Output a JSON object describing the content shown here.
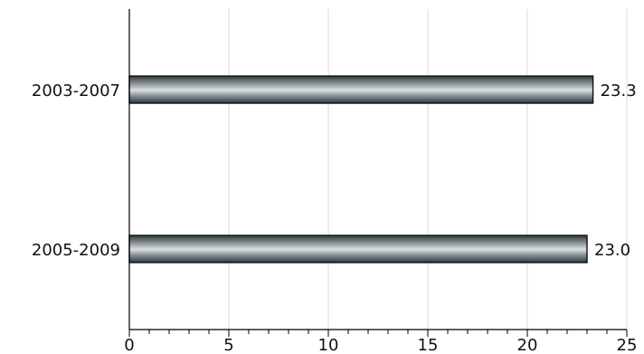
{
  "chart_data": {
    "type": "bar",
    "orientation": "horizontal",
    "categories": [
      "2003-2007",
      "2005-2009"
    ],
    "values": [
      23.3,
      23.0
    ],
    "value_labels": [
      "23.3",
      "23.0"
    ],
    "xlim": [
      0,
      25
    ],
    "x_ticks": [
      "0",
      "5",
      "10",
      "15",
      "20",
      "25"
    ],
    "minor_tick_step": 1,
    "grid": true,
    "bar_color": "#5f6b70",
    "bar_highlight_color": "#dbe1e3",
    "title": "",
    "xlabel": "",
    "ylabel": ""
  }
}
